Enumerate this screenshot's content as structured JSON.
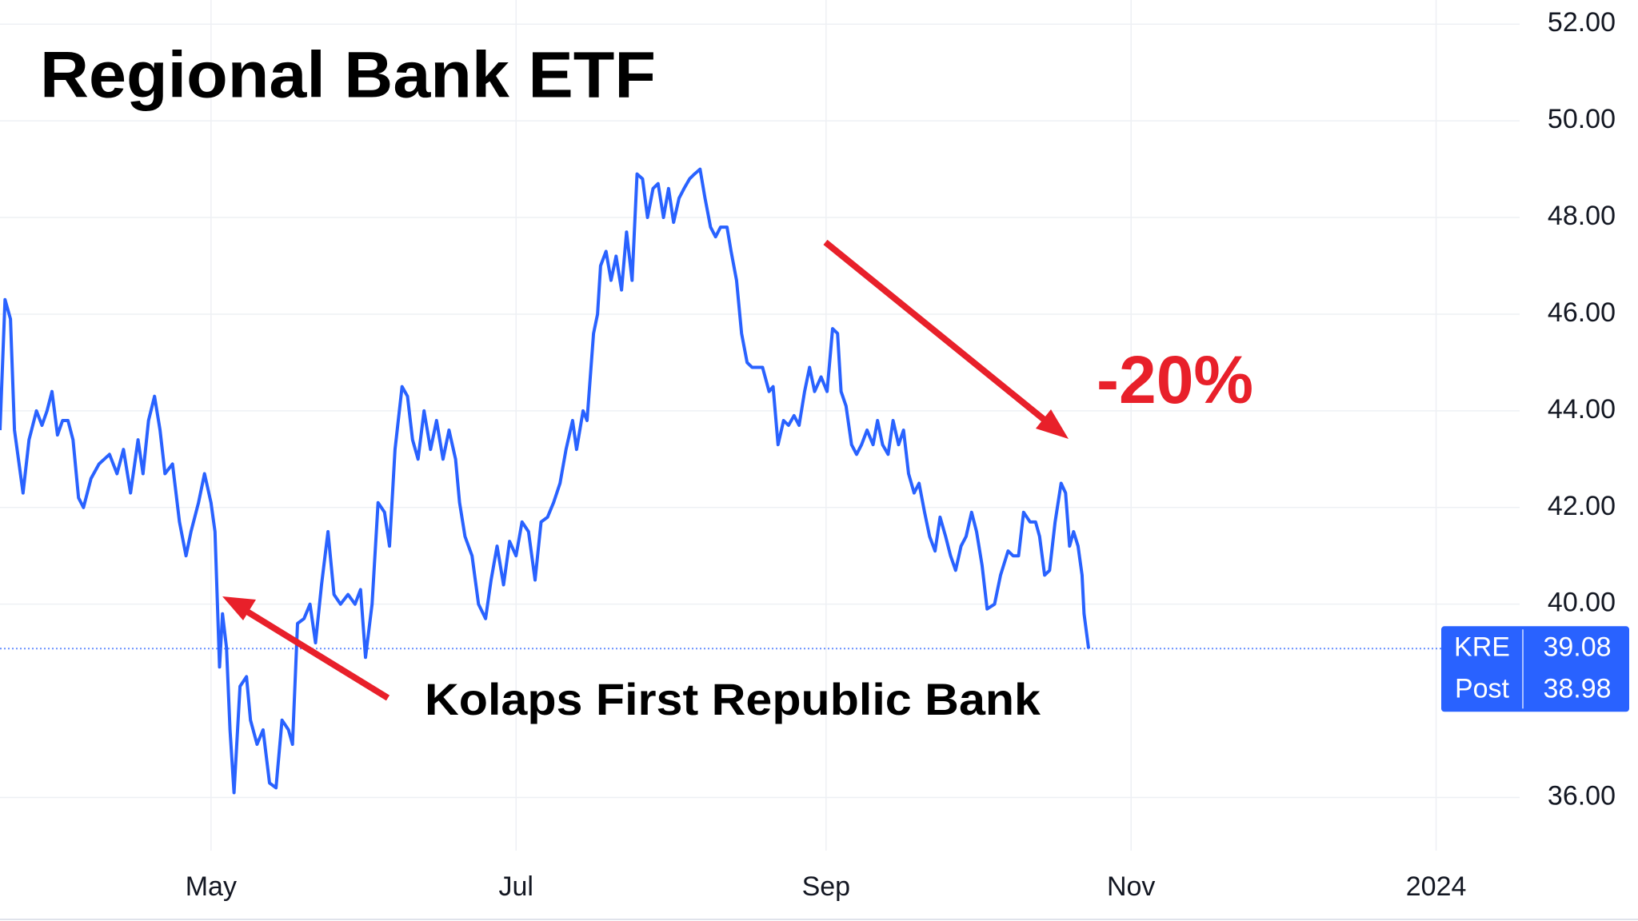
{
  "chart_data": {
    "type": "line",
    "title": "Regional Bank ETF",
    "annotations": [
      "-20%",
      "Kolaps First Republic Bank"
    ],
    "color": "#2962ff",
    "grid": true,
    "xlim": [
      78.8,
      382.7
    ],
    "xticks": [
      {
        "value": 121,
        "label": "May"
      },
      {
        "value": 182,
        "label": "Jul"
      },
      {
        "value": 244,
        "label": "Sep"
      },
      {
        "value": 305,
        "label": "Nov"
      },
      {
        "value": 366,
        "label": "2024"
      }
    ],
    "ylim": [
      34.9,
      52.5
    ],
    "yticks": [
      {
        "value": 36,
        "label": "36.00"
      },
      {
        "value": 40,
        "label": "40.00"
      },
      {
        "value": 42,
        "label": "42.00"
      },
      {
        "value": 44,
        "label": "44.00"
      },
      {
        "value": 46,
        "label": "46.00"
      },
      {
        "value": 48,
        "label": "48.00"
      },
      {
        "value": 50,
        "label": "50.00"
      },
      {
        "value": 52,
        "label": "52.00"
      }
    ],
    "price_labels": [
      {
        "name": "KRE",
        "value": 39.08
      },
      {
        "name": "Post",
        "value": 38.98
      }
    ],
    "x": [
      78.8,
      79.8,
      80.9,
      81.7,
      83.4,
      84.6,
      86.1,
      87.2,
      88.2,
      89.2,
      90.3,
      91.3,
      92.4,
      93.4,
      94.5,
      95.5,
      97.0,
      98.6,
      100.7,
      102.2,
      103.5,
      104.9,
      106.4,
      107.4,
      108.5,
      109.7,
      110.8,
      111.8,
      113.3,
      114.7,
      116.0,
      117.0,
      118.5,
      119.7,
      121.0,
      121.8,
      122.7,
      123.3,
      124.1,
      124.8,
      125.6,
      126.8,
      128.1,
      128.9,
      130.2,
      131.4,
      132.7,
      134.0,
      135.2,
      136.5,
      137.3,
      138.3,
      139.6,
      140.8,
      141.9,
      143.1,
      144.4,
      145.6,
      146.9,
      148.4,
      149.8,
      150.9,
      151.9,
      153.2,
      154.4,
      155.7,
      156.7,
      157.8,
      159.2,
      160.3,
      161.3,
      162.4,
      163.6,
      164.9,
      166.1,
      167.4,
      168.6,
      169.9,
      170.7,
      171.8,
      173.2,
      174.5,
      175.9,
      177.0,
      178.2,
      179.5,
      180.7,
      182.0,
      183.2,
      184.5,
      185.8,
      187.0,
      188.3,
      189.5,
      190.8,
      192.0,
      193.3,
      194.1,
      195.4,
      196.2,
      197.5,
      198.3,
      198.9,
      200.0,
      201.0,
      202.0,
      203.1,
      204.1,
      205.2,
      206.2,
      207.3,
      208.3,
      209.4,
      210.4,
      211.5,
      212.5,
      213.5,
      214.6,
      215.6,
      216.7,
      217.7,
      218.8,
      219.8,
      220.9,
      221.9,
      222.9,
      224.2,
      225.0,
      226.1,
      227.1,
      228.2,
      229.2,
      231.3,
      232.6,
      233.4,
      234.4,
      235.5,
      236.5,
      237.6,
      238.6,
      239.7,
      240.7,
      241.7,
      243.0,
      244.2,
      245.3,
      246.3,
      247.0,
      248.0,
      249.1,
      250.1,
      251.1,
      252.2,
      253.4,
      254.3,
      255.3,
      256.4,
      257.4,
      258.5,
      259.5,
      260.5,
      261.6,
      262.6,
      263.7,
      264.7,
      265.8,
      266.8,
      267.9,
      268.9,
      269.9,
      271.0,
      272.0,
      273.1,
      274.1,
      275.2,
      276.2,
      277.7,
      278.9,
      280.4,
      281.4,
      282.5,
      283.5,
      284.8,
      285.9,
      286.7,
      287.7,
      288.7,
      289.8,
      291.0,
      291.9,
      292.7,
      293.5,
      294.4,
      295.2,
      295.6,
      296.5
    ],
    "values": [
      43.6,
      46.3,
      45.9,
      43.6,
      42.3,
      43.4,
      44.0,
      43.7,
      44.0,
      44.4,
      43.5,
      43.8,
      43.8,
      43.4,
      42.2,
      42.0,
      42.6,
      42.9,
      43.1,
      42.7,
      43.2,
      42.3,
      43.4,
      42.7,
      43.8,
      44.3,
      43.6,
      42.7,
      42.9,
      41.7,
      41.0,
      41.5,
      42.1,
      42.7,
      42.1,
      41.5,
      38.7,
      39.8,
      39.1,
      37.4,
      36.1,
      38.3,
      38.5,
      37.6,
      37.1,
      37.4,
      36.3,
      36.2,
      37.6,
      37.4,
      37.1,
      39.6,
      39.7,
      40.0,
      39.2,
      40.4,
      41.5,
      40.2,
      40.0,
      40.2,
      40.0,
      40.3,
      38.9,
      40.0,
      42.1,
      41.9,
      41.2,
      43.2,
      44.5,
      44.3,
      43.4,
      43.0,
      44.0,
      43.2,
      43.8,
      43.0,
      43.6,
      43.0,
      42.1,
      41.4,
      41.0,
      40.0,
      39.7,
      40.5,
      41.2,
      40.4,
      41.3,
      41.0,
      41.7,
      41.5,
      40.5,
      41.7,
      41.8,
      42.1,
      42.5,
      43.2,
      43.8,
      43.2,
      44.0,
      43.8,
      45.6,
      46.0,
      47.0,
      47.3,
      46.7,
      47.2,
      46.5,
      47.7,
      46.7,
      48.9,
      48.8,
      48.0,
      48.6,
      48.7,
      48.0,
      48.6,
      47.9,
      48.4,
      48.6,
      48.8,
      48.9,
      49.0,
      48.4,
      47.8,
      47.6,
      47.8,
      47.8,
      47.3,
      46.7,
      45.6,
      45.0,
      44.9,
      44.9,
      44.4,
      44.5,
      43.3,
      43.8,
      43.7,
      43.9,
      43.7,
      44.4,
      44.9,
      44.4,
      44.7,
      44.4,
      45.7,
      45.6,
      44.4,
      44.1,
      43.3,
      43.1,
      43.3,
      43.6,
      43.3,
      43.8,
      43.3,
      43.1,
      43.8,
      43.3,
      43.6,
      42.7,
      42.3,
      42.5,
      41.9,
      41.4,
      41.1,
      41.8,
      41.4,
      41.0,
      40.7,
      41.2,
      41.4,
      41.9,
      41.5,
      40.8,
      39.9,
      40.0,
      40.6,
      41.1,
      41.0,
      41.0,
      41.9,
      41.7,
      41.7,
      41.4,
      40.6,
      40.7,
      41.7,
      42.5,
      42.3,
      41.2,
      41.5,
      41.2,
      40.6,
      39.8,
      39.08
    ]
  }
}
